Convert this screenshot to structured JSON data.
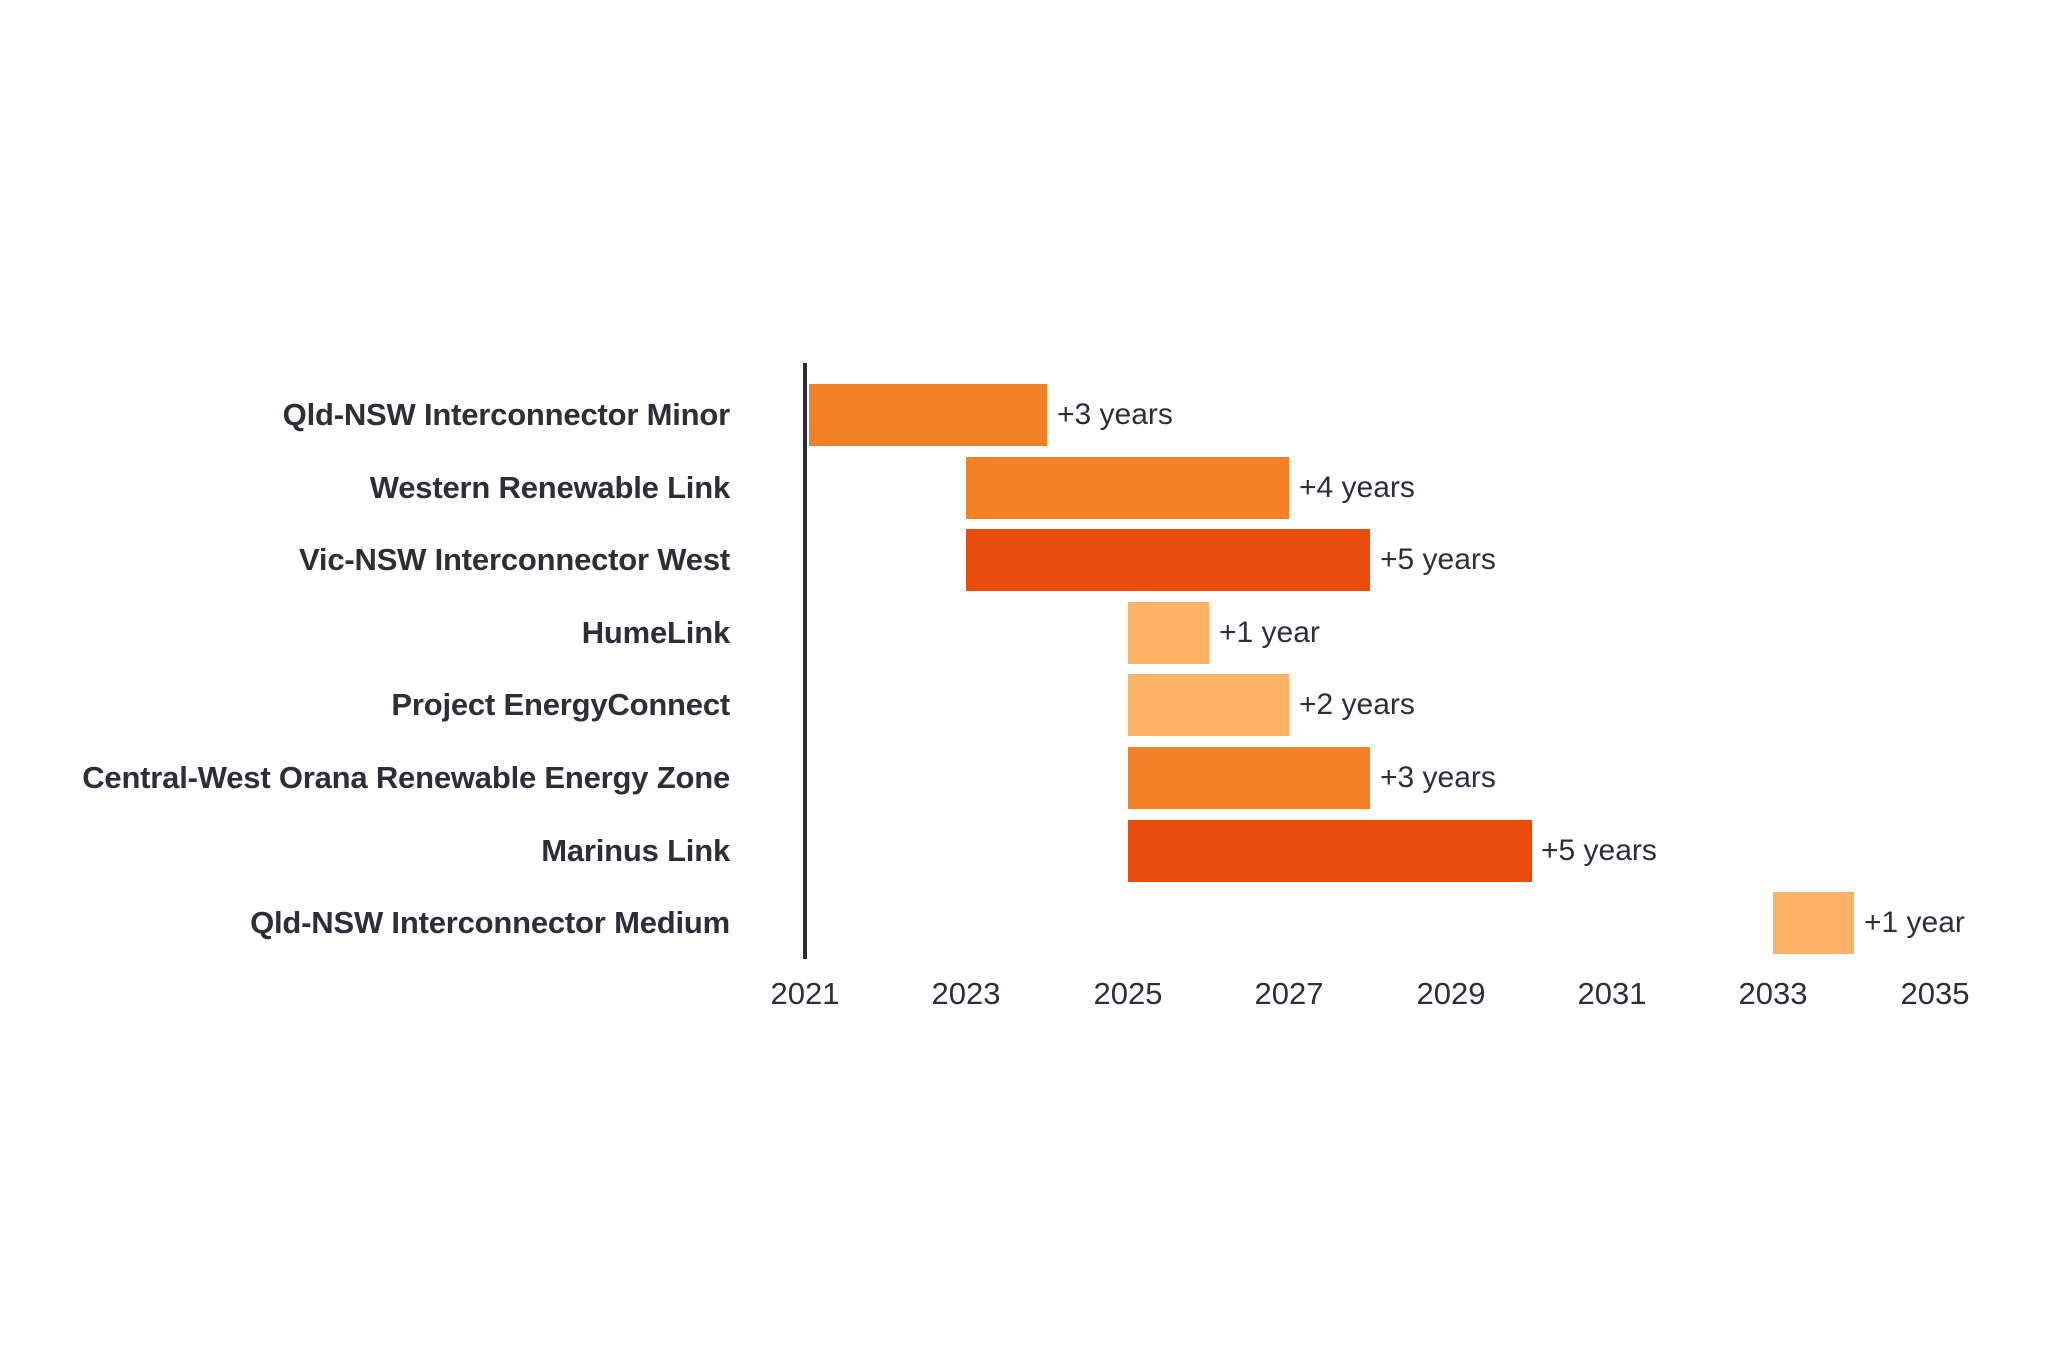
{
  "chart_data": {
    "type": "bar",
    "subtype": "horizontal-gantt",
    "title": "",
    "xlabel": "",
    "ylabel": "",
    "grid": false,
    "x_axis": {
      "min": 2021,
      "max": 2035,
      "ticks": [
        "2021",
        "2023",
        "2025",
        "2027",
        "2029",
        "2031",
        "2033",
        "2035"
      ]
    },
    "projects": [
      {
        "label": "Qld-NSW Interconnector Minor",
        "start": 2021,
        "end": 2024,
        "delay_label": "+3 years",
        "delay_years": 3,
        "color": "#F28127"
      },
      {
        "label": "Western Renewable Link",
        "start": 2023,
        "end": 2027,
        "delay_label": "+4 years",
        "delay_years": 4,
        "color": "#F28127"
      },
      {
        "label": "Vic-NSW Interconnector West",
        "start": 2023,
        "end": 2028,
        "delay_label": "+5 years",
        "delay_years": 5,
        "color": "#E84E0A"
      },
      {
        "label": "HumeLink",
        "start": 2025,
        "end": 2026,
        "delay_label": "+1 year",
        "delay_years": 1,
        "color": "#FBB166"
      },
      {
        "label": "Project EnergyConnect",
        "start": 2025,
        "end": 2027,
        "delay_label": "+2 years",
        "delay_years": 2,
        "color": "#FBB166"
      },
      {
        "label": "Central-West Orana Renewable Energy Zone",
        "start": 2025,
        "end": 2028,
        "delay_label": "+3 years",
        "delay_years": 3,
        "color": "#F28127"
      },
      {
        "label": "Marinus Link",
        "start": 2025,
        "end": 2030,
        "delay_label": "+5 years",
        "delay_years": 5,
        "color": "#E84E0A"
      },
      {
        "label": "Qld-NSW Interconnector Medium",
        "start": 2033,
        "end": 2034,
        "delay_label": "+1 year",
        "delay_years": 1,
        "color": "#FBB166"
      }
    ],
    "colors": {
      "delay_light": "#FBB166",
      "delay_medium": "#F28127",
      "delay_dark": "#E84E0A",
      "axis": "#2E2E38",
      "text": "#2E2E38"
    }
  }
}
